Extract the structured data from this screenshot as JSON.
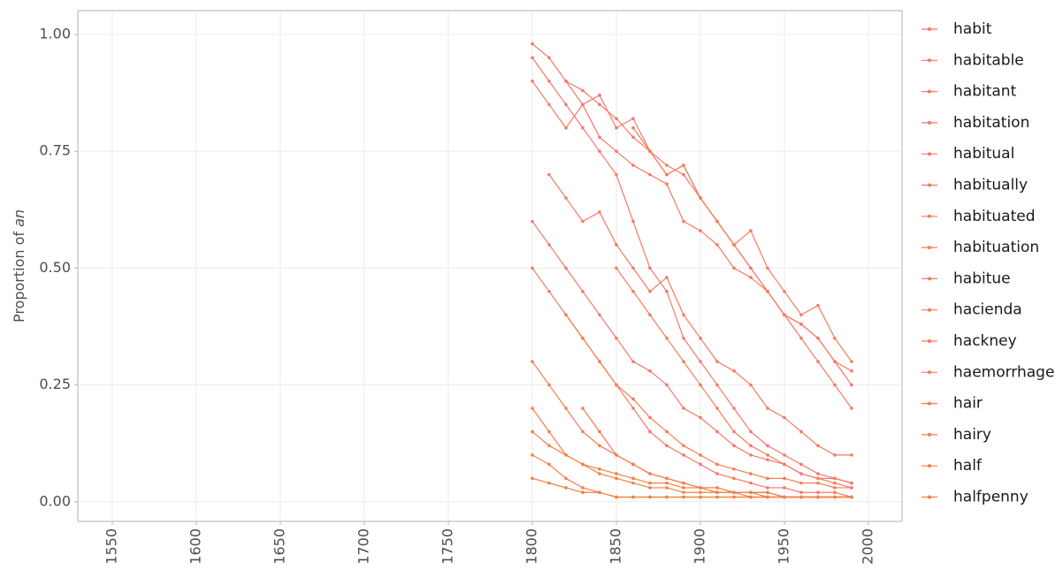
{
  "chart_data": {
    "type": "line",
    "ylabel": "Proportion of",
    "ylabel_emphasis": "an",
    "x": [
      1800,
      1810,
      1820,
      1830,
      1840,
      1850,
      1860,
      1870,
      1880,
      1890,
      1900,
      1910,
      1920,
      1930,
      1940,
      1950,
      1960,
      1970,
      1980,
      1990
    ],
    "xlim": [
      1529.5,
      2020
    ],
    "xticks": [
      1550,
      1600,
      1650,
      1700,
      1750,
      1800,
      1850,
      1900,
      1950,
      2000
    ],
    "ylim": [
      -0.042,
      1.051
    ],
    "yticks": [
      {
        "value": 0,
        "label": "0.00"
      },
      {
        "value": 0.25,
        "label": "0.25"
      },
      {
        "value": 0.5,
        "label": "0.50"
      },
      {
        "value": 0.75,
        "label": "0.75"
      },
      {
        "value": 1,
        "label": "1.00"
      }
    ],
    "grid": true,
    "series": [
      {
        "name": "habit",
        "color": "#F8766D",
        "values": [
          0.95,
          0.9,
          0.85,
          0.8,
          0.75,
          0.7,
          0.6,
          0.5,
          0.45,
          0.35,
          0.3,
          0.25,
          0.2,
          0.15,
          0.12,
          0.1,
          0.08,
          0.06,
          0.05,
          0.04
        ]
      },
      {
        "name": "habitable",
        "color": "#F8766D",
        "values": [
          0.6,
          0.55,
          0.5,
          0.45,
          0.4,
          0.35,
          0.3,
          0.28,
          0.25,
          0.2,
          0.18,
          0.15,
          0.12,
          0.1,
          0.09,
          0.08,
          0.06,
          0.05,
          0.05,
          0.04
        ]
      },
      {
        "name": "habitant",
        "color": "#F7776A",
        "values": [
          null,
          null,
          0.9,
          0.85,
          0.87,
          0.8,
          0.82,
          0.75,
          0.7,
          0.72,
          0.65,
          0.6,
          0.55,
          0.5,
          0.45,
          0.4,
          0.38,
          0.35,
          0.3,
          0.25
        ]
      },
      {
        "name": "habitation",
        "color": "#F77867",
        "values": [
          0.5,
          0.45,
          0.4,
          0.35,
          0.3,
          0.25,
          0.2,
          0.15,
          0.12,
          0.1,
          0.08,
          0.06,
          0.05,
          0.04,
          0.03,
          0.03,
          0.02,
          0.02,
          0.02,
          0.01
        ]
      },
      {
        "name": "habitual",
        "color": "#F77864",
        "values": [
          0.98,
          0.95,
          0.9,
          0.88,
          0.85,
          0.82,
          0.78,
          0.75,
          0.72,
          0.7,
          0.65,
          0.6,
          0.55,
          0.5,
          0.45,
          0.4,
          0.35,
          0.3,
          0.25,
          0.2
        ]
      },
      {
        "name": "habitually",
        "color": "#F77962",
        "values": [
          0.9,
          0.85,
          0.8,
          0.85,
          0.78,
          0.75,
          0.72,
          0.7,
          0.68,
          0.6,
          0.58,
          0.55,
          0.5,
          0.48,
          0.45,
          0.4,
          0.38,
          0.35,
          0.3,
          0.28
        ]
      },
      {
        "name": "habituated",
        "color": "#F67A5F",
        "values": [
          null,
          0.7,
          0.65,
          0.6,
          0.62,
          0.55,
          0.5,
          0.45,
          0.48,
          0.4,
          0.35,
          0.3,
          0.28,
          0.25,
          0.2,
          0.18,
          0.15,
          0.12,
          0.1,
          0.1
        ]
      },
      {
        "name": "habituation",
        "color": "#F67B5C",
        "values": [
          null,
          null,
          null,
          null,
          null,
          0.5,
          0.45,
          0.4,
          0.35,
          0.3,
          0.25,
          0.2,
          0.15,
          0.12,
          0.1,
          0.08,
          0.06,
          0.05,
          0.04,
          0.03
        ]
      },
      {
        "name": "habitue",
        "color": "#F67B59",
        "values": [
          null,
          null,
          null,
          null,
          null,
          null,
          0.8,
          0.75,
          0.7,
          0.72,
          0.65,
          0.6,
          0.55,
          0.58,
          0.5,
          0.45,
          0.4,
          0.42,
          0.35,
          0.3
        ]
      },
      {
        "name": "hacienda",
        "color": "#F57C56",
        "values": [
          null,
          null,
          null,
          0.2,
          0.15,
          0.1,
          0.08,
          0.06,
          0.05,
          0.04,
          0.03,
          0.03,
          0.02,
          0.02,
          0.02,
          0.01,
          0.01,
          0.01,
          0.01,
          0.01
        ]
      },
      {
        "name": "hackney",
        "color": "#F57D53",
        "values": [
          0.3,
          0.25,
          0.2,
          0.15,
          0.12,
          0.1,
          0.08,
          0.06,
          0.05,
          0.04,
          0.03,
          0.03,
          0.02,
          0.02,
          0.01,
          0.01,
          0.01,
          0.01,
          0.01,
          0.01
        ]
      },
      {
        "name": "haemorrhage",
        "color": "#F47E50",
        "values": [
          null,
          null,
          0.4,
          0.35,
          0.3,
          0.25,
          0.22,
          0.18,
          0.15,
          0.12,
          0.1,
          0.08,
          0.07,
          0.06,
          0.05,
          0.05,
          0.04,
          0.04,
          0.03,
          0.03
        ]
      },
      {
        "name": "hair",
        "color": "#F47F4C",
        "values": [
          0.1,
          0.08,
          0.05,
          0.03,
          0.02,
          0.01,
          0.01,
          0.01,
          0.01,
          0.01,
          0.01,
          0.01,
          0.01,
          0.01,
          0.01,
          0.01,
          0.01,
          0.01,
          0.01,
          0.01
        ]
      },
      {
        "name": "hairy",
        "color": "#F38048",
        "values": [
          0.2,
          0.15,
          0.1,
          0.08,
          0.06,
          0.05,
          0.04,
          0.03,
          0.03,
          0.02,
          0.02,
          0.02,
          0.02,
          0.01,
          0.01,
          0.01,
          0.01,
          0.01,
          0.01,
          0.01
        ]
      },
      {
        "name": "half",
        "color": "#F38045",
        "values": [
          0.05,
          0.04,
          0.03,
          0.02,
          0.02,
          0.01,
          0.01,
          0.01,
          0.01,
          0.01,
          0.01,
          0.01,
          0.01,
          0.01,
          0.01,
          0.01,
          0.01,
          0.01,
          0.01,
          0.01
        ]
      },
      {
        "name": "halfpenny",
        "color": "#F28141",
        "values": [
          0.15,
          0.12,
          0.1,
          0.08,
          0.07,
          0.06,
          0.05,
          0.04,
          0.04,
          0.03,
          0.03,
          0.02,
          0.02,
          0.02,
          0.02,
          0.01,
          0.01,
          0.01,
          0.01,
          0.01
        ]
      }
    ]
  }
}
